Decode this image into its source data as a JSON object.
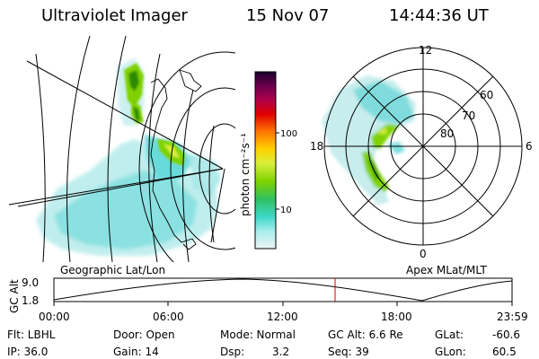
{
  "header": {
    "instrument": "Ultraviolet Imager",
    "date": "15 Nov 07",
    "time": "14:44:36 UT"
  },
  "colorbar": {
    "label": "photon cm⁻²s⁻¹",
    "ticks": [
      "100",
      "10"
    ]
  },
  "polar_plot": {
    "mlt_labels": [
      "12",
      "18",
      "6",
      "0"
    ],
    "mlat_labels": [
      "60",
      "70",
      "80"
    ]
  },
  "projection_labels": {
    "left": "Geographic Lat/Lon",
    "right": "Apex MLat/MLT"
  },
  "orbit_plot": {
    "ylabel": "GC Alt",
    "yticks": [
      "9.0",
      "1.8"
    ],
    "xticks": [
      "00:00",
      "06:00",
      "12:00",
      "18:00",
      "23:59"
    ],
    "marker_time": "14:44",
    "colors": {
      "marker": "#cc0000",
      "curve": "#000000"
    }
  },
  "info": {
    "row1": {
      "flt": "Flt: LBHL",
      "door": "Door: Open",
      "mode": "Mode: Normal",
      "gcalt": "GC Alt: 6.6 Re",
      "glat_label": "GLat:",
      "glat_value": "-60.6"
    },
    "row2": {
      "ip": "IP: 36.0",
      "gain": "Gain: 14",
      "dsp_label": "Dsp:",
      "dsp_value": "3.2",
      "seq": "Seq: 39",
      "glon_label": "GLon:",
      "glon_value": "60.5"
    }
  },
  "colors": {
    "aurora_bright": "#2a8a00",
    "aurora_green": "#7fd200",
    "aurora_yellow": "#d8ee3a",
    "cyan_bg": "#5fd8d8",
    "pale_cyan": "#c8f0f0"
  }
}
